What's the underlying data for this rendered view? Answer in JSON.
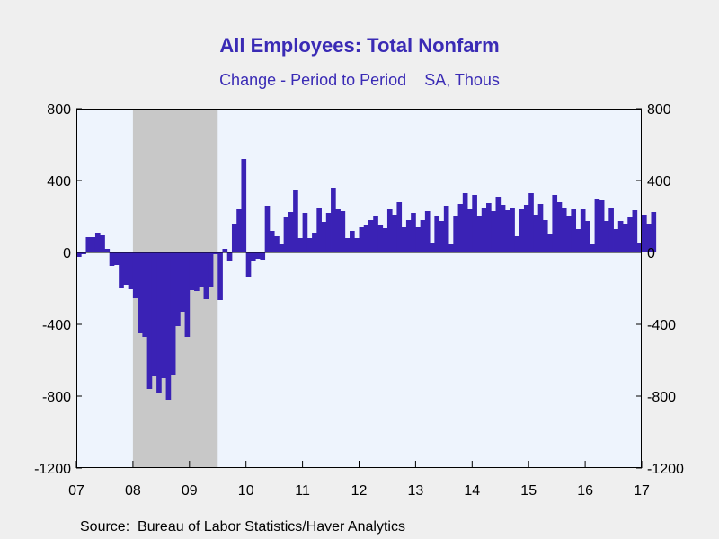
{
  "chart_data": {
    "type": "bar",
    "title": "All Employees: Total Nonfarm",
    "subtitle": "Change - Period to Period    SA, Thous",
    "source": "Source:  Bureau of Labor Statistics/Haver Analytics",
    "ylim": [
      -1200,
      800
    ],
    "yticks": [
      800,
      400,
      0,
      -400,
      -800,
      -1200
    ],
    "xlabels": [
      "07",
      "08",
      "09",
      "10",
      "11",
      "12",
      "13",
      "14",
      "15",
      "16",
      "17"
    ],
    "x_start": "2007-01",
    "recession_shading": {
      "start": "2008-01",
      "end": "2009-06"
    },
    "colors": {
      "bar": "#3a22b5",
      "plot_background": "#eef4fd",
      "recession": "#c8c8c8",
      "axis": "#000000"
    },
    "values": [
      -25,
      -10,
      85,
      85,
      110,
      95,
      20,
      -75,
      -70,
      -200,
      -180,
      -205,
      -255,
      -450,
      -470,
      -760,
      -690,
      -780,
      -700,
      -820,
      -680,
      -410,
      -330,
      -470,
      -210,
      -215,
      -195,
      -260,
      -190,
      -10,
      -265,
      20,
      -50,
      160,
      240,
      520,
      -135,
      -50,
      -35,
      -40,
      260,
      120,
      90,
      45,
      195,
      225,
      350,
      80,
      220,
      80,
      110,
      250,
      170,
      220,
      360,
      240,
      230,
      80,
      120,
      80,
      140,
      150,
      180,
      200,
      150,
      135,
      240,
      210,
      280,
      140,
      180,
      220,
      140,
      180,
      230,
      50,
      200,
      175,
      260,
      45,
      200,
      270,
      330,
      240,
      320,
      205,
      250,
      275,
      230,
      310,
      265,
      235,
      250,
      90,
      240,
      265,
      330,
      210,
      270,
      180,
      100,
      320,
      280,
      250,
      200,
      240,
      130,
      240,
      175,
      45,
      300,
      290,
      175,
      250,
      130,
      175,
      160,
      195,
      235,
      55,
      210,
      160,
      225
    ]
  }
}
